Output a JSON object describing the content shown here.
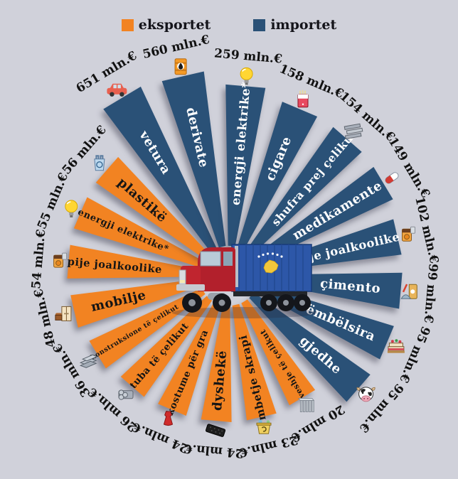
{
  "legend": {
    "items": [
      {
        "label": "eksportet",
        "series": "eksportet"
      },
      {
        "label": "importet",
        "series": "importet"
      }
    ]
  },
  "chart_data": {
    "type": "radial-bar",
    "unit": "mln.€",
    "title": "",
    "legend_position": "top-center",
    "center_image": "red-truck-with-kosovo-flag-container",
    "order": "clockwise-from-top-left",
    "colors": {
      "eksportet": "#f28322",
      "importet": "#2a5177"
    },
    "wedges": [
      {
        "label": "vetura",
        "value": 651,
        "value_label": "651 mln.€",
        "series": "importet",
        "icon": "car"
      },
      {
        "label": "derivate",
        "value": 560,
        "value_label": "560 mln.€",
        "series": "importet",
        "icon": "oil-barrel"
      },
      {
        "label": "energji elektrike*",
        "value": 259,
        "value_label": "259 mln.€",
        "series": "importet",
        "icon": "lightbulb"
      },
      {
        "label": "cigare",
        "value": 158,
        "value_label": "158 mln.€",
        "series": "importet",
        "icon": "cigarettes"
      },
      {
        "label": "shufra prej çeliku",
        "value": 154,
        "value_label": "154 mln.€",
        "series": "importet",
        "icon": "steel-bars"
      },
      {
        "label": "medikamente",
        "value": 149,
        "value_label": "149 mln.€",
        "series": "importet",
        "icon": "pill"
      },
      {
        "label": "pije joalkoolike",
        "value": 102,
        "value_label": "102 mln.€",
        "series": "importet",
        "icon": "drink"
      },
      {
        "label": "çimento",
        "value": 99,
        "value_label": "99 mln.€",
        "series": "importet",
        "icon": "cement-bag"
      },
      {
        "label": "ëmbëlsira",
        "value": 95,
        "value_label": "95 mln.€",
        "series": "importet",
        "icon": "cake"
      },
      {
        "label": "gjedhe",
        "value": 95,
        "value_label": "95 mln.€",
        "series": "importet",
        "icon": "cow"
      },
      {
        "label": "veshje të çelikut",
        "value": 20,
        "value_label": "20 mln.€",
        "series": "eksportet",
        "icon": "steel-profiles"
      },
      {
        "label": "mbetje skrapi",
        "value": 23,
        "value_label": "23 mln.€",
        "series": "eksportet",
        "icon": "scrap-bin"
      },
      {
        "label": "dyshekë",
        "value": 24,
        "value_label": "24 mln.€",
        "series": "eksportet",
        "icon": "mattress"
      },
      {
        "label": "kostume për gra",
        "value": 24,
        "value_label": "24 mln.€",
        "series": "eksportet",
        "icon": "dress"
      },
      {
        "label": "tuba të çelikut",
        "value": 26,
        "value_label": "26 mln.€",
        "series": "eksportet",
        "icon": "pipes"
      },
      {
        "label": "konstruksione të çelikut",
        "value": 36,
        "value_label": "36 mln.€",
        "series": "eksportet",
        "icon": "steel-beams"
      },
      {
        "label": "mobilje",
        "value": 48,
        "value_label": "48 mln.€",
        "series": "eksportet",
        "icon": "furniture"
      },
      {
        "label": "pije joalkoolike",
        "value": 54,
        "value_label": "54 mln.€",
        "series": "eksportet",
        "icon": "drink"
      },
      {
        "label": "energji elektrike*",
        "value": 55,
        "value_label": "55 mln.€",
        "series": "eksportet",
        "icon": "lightbulb"
      },
      {
        "label": "plastikë",
        "value": 56,
        "value_label": "56 mln.€",
        "series": "eksportet",
        "icon": "plastic-bag"
      }
    ]
  }
}
